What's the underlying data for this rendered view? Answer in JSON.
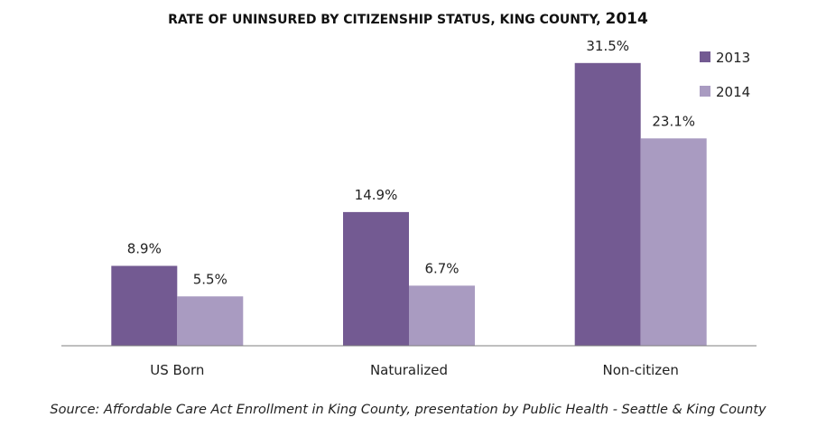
{
  "chart_data": {
    "type": "bar",
    "title": "RATE OF UNINSURED BY CITIZENSHIP STATUS, KING COUNTY,",
    "title_year": "2014",
    "categories": [
      "US Born",
      "Naturalized",
      "Non-citizen"
    ],
    "series": [
      {
        "name": "2013",
        "values": [
          8.9,
          14.9,
          31.5
        ],
        "labels": [
          "8.9%",
          "14.9%",
          "31.5%"
        ],
        "color": "#735a92"
      },
      {
        "name": "2014",
        "values": [
          5.5,
          6.7,
          23.1
        ],
        "labels": [
          "5.5%",
          "6.7%",
          "23.1%"
        ],
        "color": "#a99bc1"
      }
    ],
    "ylim": [
      0,
      35
    ],
    "xlabel": "",
    "ylabel": "",
    "grid": false,
    "legend_position": "top-right",
    "source": "Source: Affordable Care Act Enrollment in King County, presentation by Public Health - Seattle & King County"
  },
  "colors": {
    "axis": "#7f7f7f",
    "text": "#222222"
  }
}
